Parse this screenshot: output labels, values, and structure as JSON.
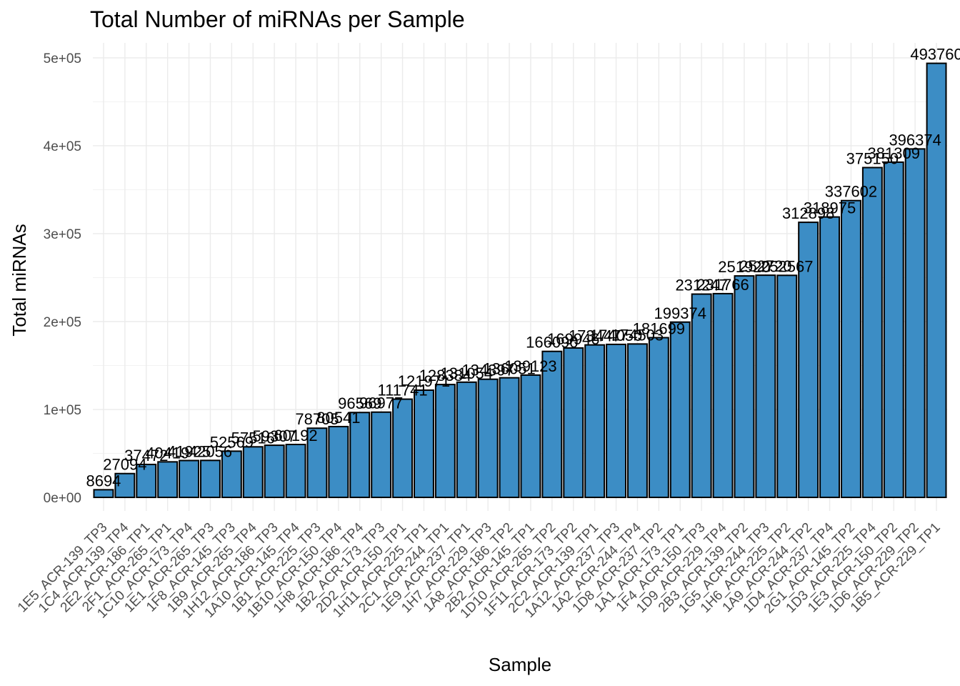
{
  "chart_data": {
    "type": "bar",
    "title": "Total Number of miRNAs per Sample",
    "x_label": "Sample",
    "y_label": "Total miRNAs",
    "categories": [
      "1E5_ACR-139_TP3",
      "1C4_ACR-139_TP4",
      "2E2_ACR-186_TP1",
      "2F1_ACR-265_TP1",
      "1C10_ACR-173_TP4",
      "1E1_ACR-265_TP3",
      "1F8_ACR-145_TP3",
      "1B9_ACR-265_TP4",
      "1H12_ACR-186_TP3",
      "1A10_ACR-145_TP4",
      "1B1_ACR-225_TP3",
      "1B10_ACR-150_TP4",
      "1H8_ACR-186_TP4",
      "1B2_ACR-173_TP3",
      "2D2_ACR-150_TP1",
      "1H11_ACR-225_TP1",
      "2C1_ACR-244_TP1",
      "1E9_ACR-237_TP1",
      "1H7_ACR-229_TP3",
      "1A8_ACR-186_TP2",
      "2B2_ACR-145_TP1",
      "1D10_ACR-265_TP2",
      "1F11_ACR-173_TP2",
      "2C2_ACR-139_TP1",
      "1A12_ACR-237_TP3",
      "1A2_ACR-244_TP4",
      "1D8_ACR-237_TP2",
      "1A1_ACR-173_TP1",
      "1F4_ACR-150_TP3",
      "1D9_ACR-229_TP4",
      "2B3_ACR-139_TP2",
      "1G5_ACR-244_TP3",
      "1H6_ACR-225_TP2",
      "1A9_ACR-244_TP2",
      "1D4_ACR-237_TP4",
      "2G1_ACR-145_TP2",
      "1D3_ACR-225_TP4",
      "1E3_ACR-150_TP2",
      "1D6_ACR-229_TP2",
      "1B5_ACR-229_TP1"
    ],
    "values": [
      8694,
      27094,
      37472,
      40419,
      41925,
      42056,
      52569,
      57516,
      59307,
      60192,
      78705,
      80541,
      96569,
      96977,
      111741,
      121971,
      128384,
      131054,
      134397,
      136051,
      139123,
      166090,
      169946,
      173447,
      174050,
      174503,
      181699,
      199374,
      231247,
      231766,
      251920,
      252720,
      252567,
      312898,
      318975,
      337602,
      375150,
      381309,
      396374,
      493760
    ],
    "color": "#3c8dc5",
    "edge_color": "#000000",
    "ylim": [
      -15400,
      517000
    ],
    "yticks": [
      {
        "value": 0,
        "label": "0e+00"
      },
      {
        "value": 100000,
        "label": "1e+05"
      },
      {
        "value": 200000,
        "label": "2e+05"
      },
      {
        "value": 300000,
        "label": "3e+05"
      },
      {
        "value": 400000,
        "label": "4e+05"
      },
      {
        "value": 500000,
        "label": "5e+05"
      }
    ],
    "grid": true
  }
}
